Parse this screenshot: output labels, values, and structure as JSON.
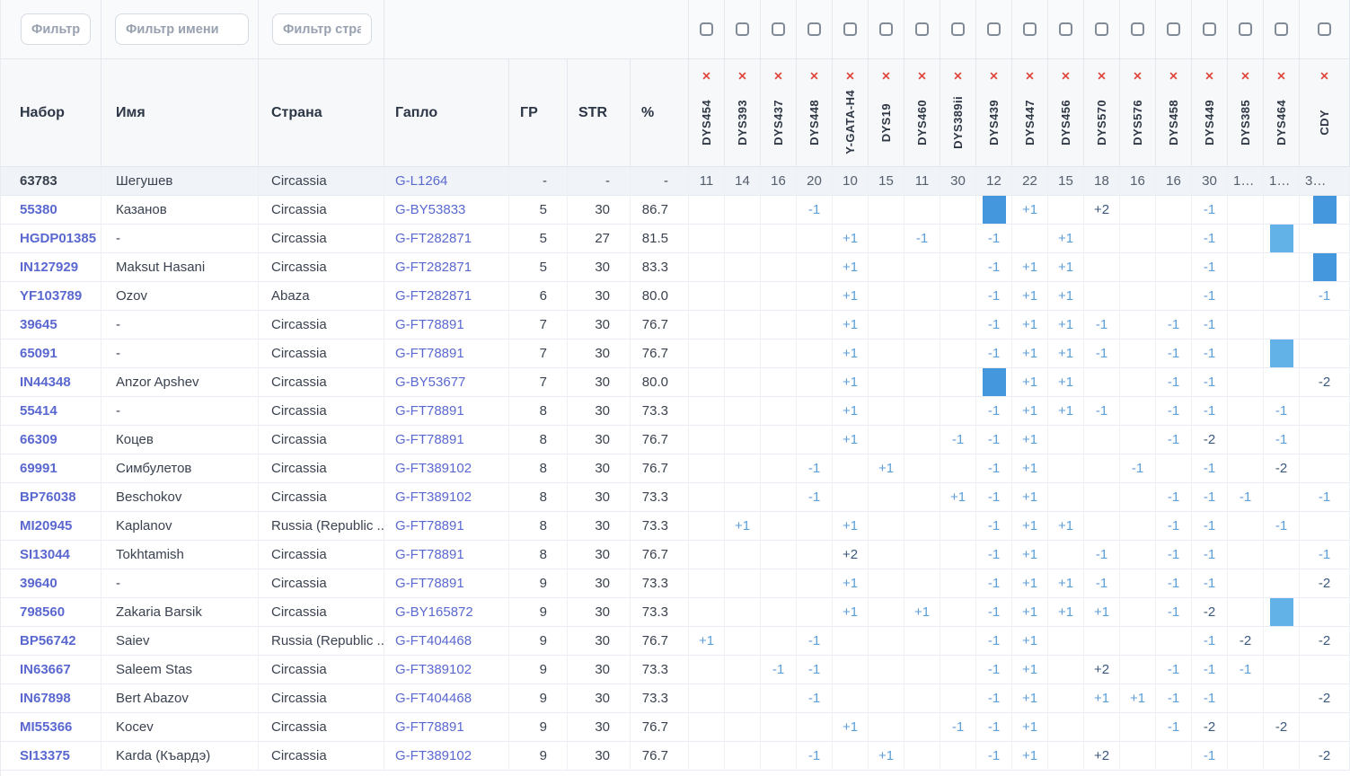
{
  "filter_row": {
    "kit_filter": {
      "placeholder": "Фильтр на"
    },
    "name_filter": {
      "placeholder": "Фильтр имени"
    },
    "country_filter": {
      "placeholder": "Фильтр страны"
    }
  },
  "header": {
    "kit": "Набор",
    "name": "Имя",
    "country": "Страна",
    "haplo": "Гапло",
    "gr": "ГР",
    "str": "STR",
    "pct": "%",
    "remove_icon": "✕"
  },
  "markers": [
    "DYS454",
    "DYS393",
    "DYS437",
    "DYS448",
    "Y-GATA-H4",
    "DYS19",
    "DYS460",
    "DYS389ii",
    "DYS439",
    "DYS447",
    "DYS456",
    "DYS570",
    "DYS576",
    "DYS458",
    "DYS449",
    "DYS385",
    "DYS464",
    "CDY"
  ],
  "base_row": {
    "kit": "63783",
    "name": "Шегушев",
    "country": "Circassia",
    "haplogroup": "G-L1264",
    "gr": "-",
    "str": "-",
    "pct": "-",
    "marker_values": [
      "11",
      "14",
      "16",
      "20",
      "10",
      "15",
      "11",
      "30",
      "12",
      "22",
      "15",
      "18",
      "16",
      "16",
      "30",
      "1…",
      "1…",
      "3…"
    ]
  },
  "rows": [
    {
      "kit": "55380",
      "name": "Казанов",
      "country": "Circassia",
      "haplogroup": "G-BY53833",
      "gr": "5",
      "str": "30",
      "pct": "86.7",
      "diffs": {
        "DYS448": "-1",
        "DYS439": "block-dark",
        "DYS447": "+1",
        "DYS570": "+2",
        "DYS449": "-1",
        "CDY": "block-dark"
      }
    },
    {
      "kit": "HGDP01385",
      "name": "-",
      "country": "Circassia",
      "haplogroup": "G-FT282871",
      "gr": "5",
      "str": "27",
      "pct": "81.5",
      "diffs": {
        "Y-GATA-H4": "+1",
        "DYS460": "-1",
        "DYS439": "-1",
        "DYS456": "+1",
        "DYS449": "-1",
        "DYS464": "block-light"
      }
    },
    {
      "kit": "IN127929",
      "name": "Maksut Hasani",
      "country": "Circassia",
      "haplogroup": "G-FT282871",
      "gr": "5",
      "str": "30",
      "pct": "83.3",
      "diffs": {
        "Y-GATA-H4": "+1",
        "DYS439": "-1",
        "DYS447": "+1",
        "DYS456": "+1",
        "DYS449": "-1",
        "CDY": "block-dark"
      }
    },
    {
      "kit": "YF103789",
      "name": "Ozov",
      "country": "Abaza",
      "haplogroup": "G-FT282871",
      "gr": "6",
      "str": "30",
      "pct": "80.0",
      "diffs": {
        "Y-GATA-H4": "+1",
        "DYS439": "-1",
        "DYS447": "+1",
        "DYS456": "+1",
        "DYS449": "-1",
        "CDY": "-1"
      }
    },
    {
      "kit": "39645",
      "name": "-",
      "country": "Circassia",
      "haplogroup": "G-FT78891",
      "gr": "7",
      "str": "30",
      "pct": "76.7",
      "diffs": {
        "Y-GATA-H4": "+1",
        "DYS439": "-1",
        "DYS447": "+1",
        "DYS456": "+1",
        "DYS570": "-1",
        "DYS458": "-1",
        "DYS449": "-1"
      }
    },
    {
      "kit": "65091",
      "name": "-",
      "country": "Circassia",
      "haplogroup": "G-FT78891",
      "gr": "7",
      "str": "30",
      "pct": "76.7",
      "diffs": {
        "Y-GATA-H4": "+1",
        "DYS439": "-1",
        "DYS447": "+1",
        "DYS456": "+1",
        "DYS570": "-1",
        "DYS458": "-1",
        "DYS449": "-1",
        "DYS464": "block-light"
      }
    },
    {
      "kit": "IN44348",
      "name": "Anzor Apshev",
      "country": "Circassia",
      "haplogroup": "G-BY53677",
      "gr": "7",
      "str": "30",
      "pct": "80.0",
      "diffs": {
        "Y-GATA-H4": "+1",
        "DYS439": "block-dark",
        "DYS447": "+1",
        "DYS456": "+1",
        "DYS458": "-1",
        "DYS449": "-1",
        "CDY": "-2"
      }
    },
    {
      "kit": "55414",
      "name": "-",
      "country": "Circassia",
      "haplogroup": "G-FT78891",
      "gr": "8",
      "str": "30",
      "pct": "73.3",
      "diffs": {
        "Y-GATA-H4": "+1",
        "DYS439": "-1",
        "DYS447": "+1",
        "DYS456": "+1",
        "DYS570": "-1",
        "DYS458": "-1",
        "DYS449": "-1",
        "DYS464": "-1"
      }
    },
    {
      "kit": "66309",
      "name": "Коцев",
      "country": "Circassia",
      "haplogroup": "G-FT78891",
      "gr": "8",
      "str": "30",
      "pct": "76.7",
      "diffs": {
        "Y-GATA-H4": "+1",
        "DYS389ii": "-1",
        "DYS439": "-1",
        "DYS447": "+1",
        "DYS458": "-1",
        "DYS449": "-2",
        "DYS464": "-1"
      }
    },
    {
      "kit": "69991",
      "name": "Симбулетов",
      "country": "Circassia",
      "haplogroup": "G-FT389102",
      "gr": "8",
      "str": "30",
      "pct": "76.7",
      "diffs": {
        "DYS448": "-1",
        "DYS19": "+1",
        "DYS439": "-1",
        "DYS447": "+1",
        "DYS576": "-1",
        "DYS449": "-1",
        "DYS464": "-2"
      }
    },
    {
      "kit": "BP76038",
      "name": "Beschokov",
      "country": "Circassia",
      "haplogroup": "G-FT389102",
      "gr": "8",
      "str": "30",
      "pct": "73.3",
      "diffs": {
        "DYS448": "-1",
        "DYS389ii": "+1",
        "DYS439": "-1",
        "DYS447": "+1",
        "DYS458": "-1",
        "DYS449": "-1",
        "DYS385": "-1",
        "CDY": "-1"
      }
    },
    {
      "kit": "MI20945",
      "name": "Kaplanov",
      "country": "Russia (Republic ...",
      "haplogroup": "G-FT78891",
      "gr": "8",
      "str": "30",
      "pct": "73.3",
      "diffs": {
        "DYS393": "+1",
        "Y-GATA-H4": "+1",
        "DYS439": "-1",
        "DYS447": "+1",
        "DYS456": "+1",
        "DYS458": "-1",
        "DYS449": "-1",
        "DYS464": "-1"
      }
    },
    {
      "kit": "SI13044",
      "name": "Tokhtamish",
      "country": "Circassia",
      "haplogroup": "G-FT78891",
      "gr": "8",
      "str": "30",
      "pct": "76.7",
      "diffs": {
        "Y-GATA-H4": "+2",
        "DYS439": "-1",
        "DYS447": "+1",
        "DYS570": "-1",
        "DYS458": "-1",
        "DYS449": "-1",
        "CDY": "-1"
      }
    },
    {
      "kit": "39640",
      "name": "-",
      "country": "Circassia",
      "haplogroup": "G-FT78891",
      "gr": "9",
      "str": "30",
      "pct": "73.3",
      "diffs": {
        "Y-GATA-H4": "+1",
        "DYS439": "-1",
        "DYS447": "+1",
        "DYS456": "+1",
        "DYS570": "-1",
        "DYS458": "-1",
        "DYS449": "-1",
        "CDY": "-2"
      }
    },
    {
      "kit": "798560",
      "name": "Zakaria Barsik",
      "country": "Circassia",
      "haplogroup": "G-BY165872",
      "gr": "9",
      "str": "30",
      "pct": "73.3",
      "diffs": {
        "Y-GATA-H4": "+1",
        "DYS460": "+1",
        "DYS439": "-1",
        "DYS447": "+1",
        "DYS456": "+1",
        "DYS570": "+1",
        "DYS458": "-1",
        "DYS449": "-2",
        "DYS464": "block-light"
      }
    },
    {
      "kit": "BP56742",
      "name": "Saiev",
      "country": "Russia (Republic ...",
      "haplogroup": "G-FT404468",
      "gr": "9",
      "str": "30",
      "pct": "76.7",
      "diffs": {
        "DYS454": "+1",
        "DYS448": "-1",
        "DYS439": "-1",
        "DYS447": "+1",
        "DYS449": "-1",
        "DYS385": "-2",
        "CDY": "-2"
      }
    },
    {
      "kit": "IN63667",
      "name": "Saleem Stas",
      "country": "Circassia",
      "haplogroup": "G-FT389102",
      "gr": "9",
      "str": "30",
      "pct": "73.3",
      "diffs": {
        "DYS437": "-1",
        "DYS448": "-1",
        "DYS439": "-1",
        "DYS447": "+1",
        "DYS570": "+2",
        "DYS458": "-1",
        "DYS449": "-1",
        "DYS385": "-1"
      }
    },
    {
      "kit": "IN67898",
      "name": "Bert Abazov",
      "country": "Circassia",
      "haplogroup": "G-FT404468",
      "gr": "9",
      "str": "30",
      "pct": "73.3",
      "diffs": {
        "DYS448": "-1",
        "DYS439": "-1",
        "DYS447": "+1",
        "DYS570": "+1",
        "DYS576": "+1",
        "DYS458": "-1",
        "DYS449": "-1",
        "CDY": "-2"
      }
    },
    {
      "kit": "MI55366",
      "name": "Kocev",
      "country": "Circassia",
      "haplogroup": "G-FT78891",
      "gr": "9",
      "str": "30",
      "pct": "76.7",
      "diffs": {
        "Y-GATA-H4": "+1",
        "DYS389ii": "-1",
        "DYS439": "-1",
        "DYS447": "+1",
        "DYS458": "-1",
        "DYS449": "-2",
        "DYS464": "-2"
      }
    },
    {
      "kit": "SI13375",
      "name": "Karda (Къардэ)",
      "country": "Circassia",
      "haplogroup": "G-FT389102",
      "gr": "9",
      "str": "30",
      "pct": "76.7",
      "diffs": {
        "DYS448": "-1",
        "DYS19": "+1",
        "DYS439": "-1",
        "DYS447": "+1",
        "DYS570": "+2",
        "DYS449": "-1",
        "CDY": "-2"
      }
    }
  ],
  "colors": {
    "link": "#5a68cf",
    "diff_minor": "#5b9fd9",
    "diff_major": "#3b587a",
    "block_dark": "#4497dc",
    "block_light": "#62b1e7",
    "remove_x": "#e0483d",
    "base_row_bg": "#f0f4f8"
  }
}
